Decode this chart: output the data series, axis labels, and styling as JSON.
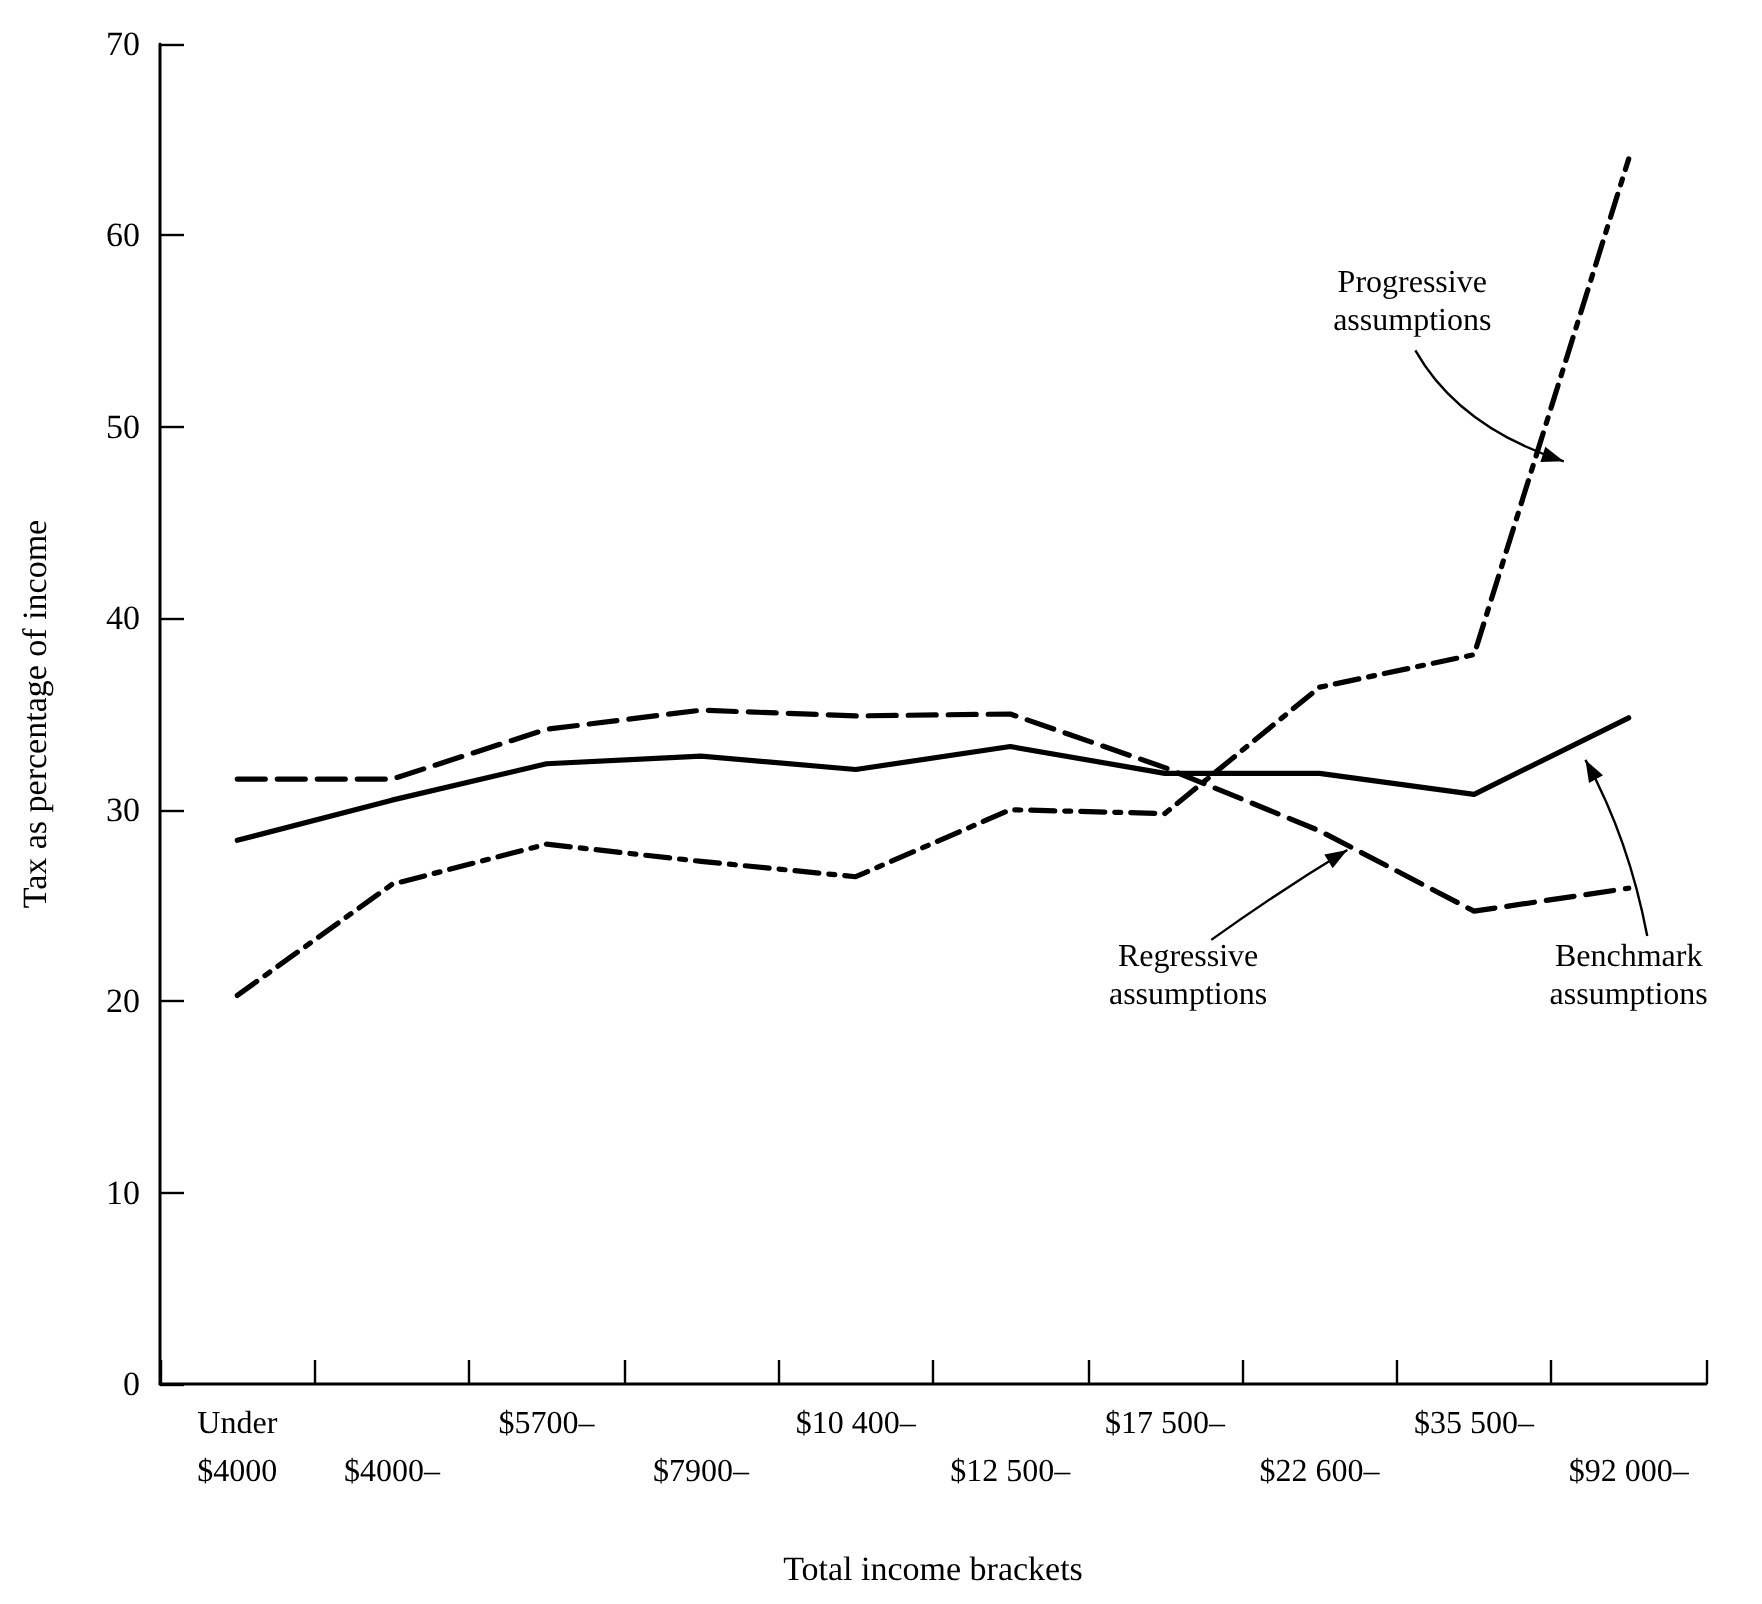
{
  "chart_data": {
    "type": "line",
    "xlabel": "Total income brackets",
    "ylabel": "Tax as percentage of income",
    "categories": [
      "Under $4000",
      "$4000–",
      "$5700–",
      "$7900–",
      "$10 400–",
      "$12 500–",
      "$17 500–",
      "$22 600–",
      "$35 500–",
      "$92 000–"
    ],
    "series": [
      {
        "name": "Benchmark assumptions",
        "color": "#000000",
        "line_style": "solid",
        "values": [
          28.4,
          30.5,
          32.4,
          32.8,
          32.1,
          33.3,
          31.9,
          31.9,
          30.8,
          34.8
        ]
      },
      {
        "name": "Regressive assumptions",
        "color": "#000000",
        "line_style": "dashed",
        "values": [
          31.6,
          31.6,
          34.2,
          35.2,
          34.9,
          35.0,
          32.2,
          28.9,
          24.7,
          25.9
        ]
      },
      {
        "name": "Progressive assumptions",
        "color": "#000000",
        "line_style": "dashdot",
        "values": [
          20.3,
          26.1,
          28.2,
          27.3,
          26.5,
          30.0,
          29.8,
          36.4,
          38.1,
          64.0
        ]
      }
    ],
    "ylim": [
      0,
      70
    ],
    "yticks": [
      0,
      10,
      20,
      30,
      40,
      50,
      60,
      70
    ],
    "grid": false,
    "legend": false,
    "marker": "none"
  }
}
